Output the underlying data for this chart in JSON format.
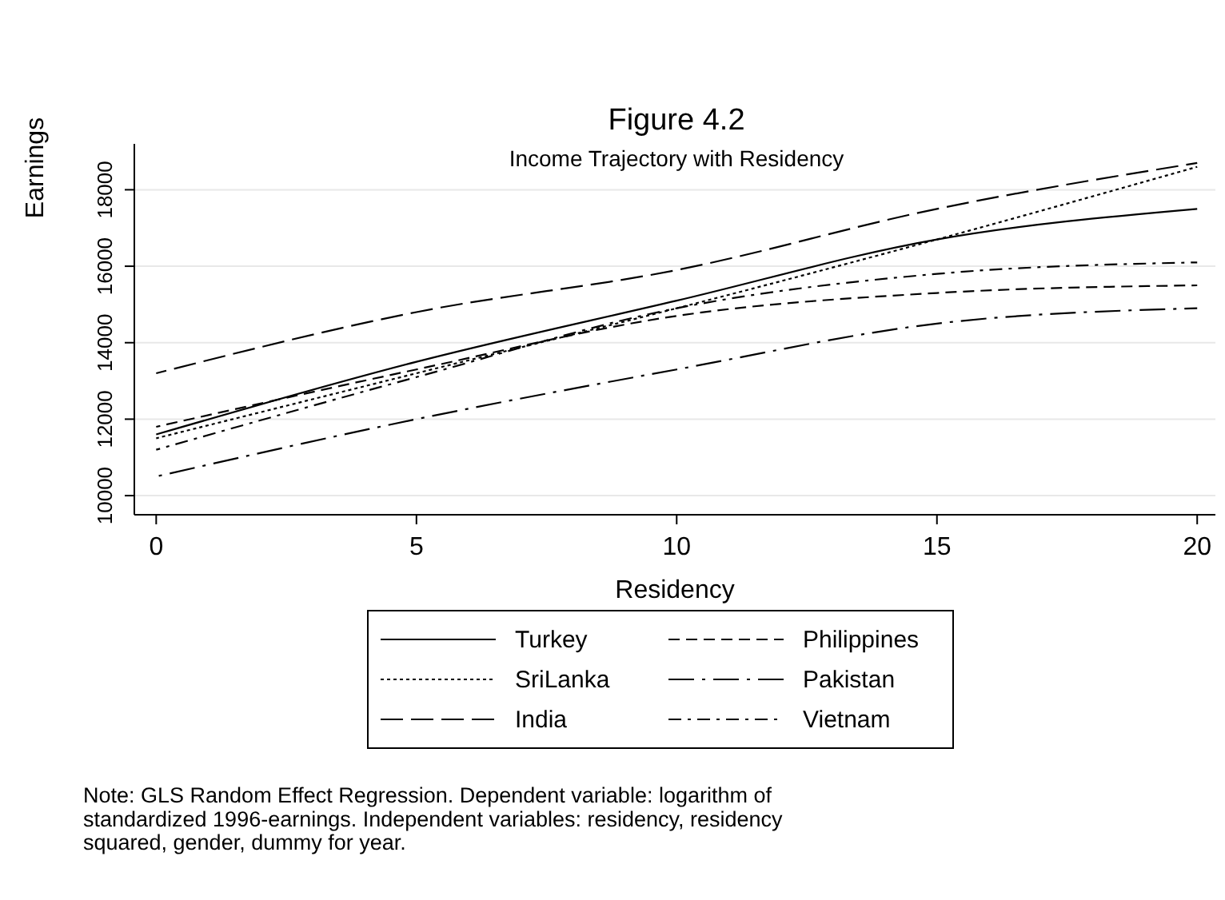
{
  "chart_data": {
    "type": "line",
    "title": "Figure 4.2",
    "subtitle": "Income Trajectory with Residency",
    "xlabel": "Residency",
    "ylabel": "Earnings",
    "x": [
      0,
      5,
      10,
      15,
      20
    ],
    "series": [
      {
        "name": "Turkey",
        "color": "#000000",
        "line_style": "solid",
        "values": [
          11600,
          13500,
          15100,
          16700,
          17500
        ]
      },
      {
        "name": "SriLanka",
        "color": "#000000",
        "line_style": "dotted",
        "values": [
          11500,
          13200,
          14900,
          16700,
          18600
        ]
      },
      {
        "name": "India",
        "color": "#000000",
        "line_style": "longdash",
        "values": [
          13200,
          14800,
          15900,
          17500,
          18700
        ]
      },
      {
        "name": "Philippines",
        "color": "#000000",
        "line_style": "dashed",
        "values": [
          11800,
          13300,
          14700,
          15300,
          15500
        ]
      },
      {
        "name": "Pakistan",
        "color": "#000000",
        "line_style": "longdashdot",
        "values": [
          10500,
          12000,
          13300,
          14500,
          14900
        ]
      },
      {
        "name": "Vietnam",
        "color": "#000000",
        "line_style": "dashdot",
        "values": [
          11200,
          13100,
          14900,
          15800,
          16100
        ]
      }
    ],
    "xlim": [
      -0.42,
      20.35
    ],
    "xticks": [
      0,
      5,
      10,
      15,
      20
    ],
    "ylim": [
      9500,
      19200
    ],
    "yticks": [
      10000,
      12000,
      14000,
      16000,
      18000
    ],
    "grid": "y",
    "legend": "bottom",
    "marker": "none",
    "annotations": [
      "Note: GLS Random Effect Regression. Dependent variable: logarithm of standardized 1996-earnings. Independent variables: residency, residency squared, gender, dummy for year."
    ]
  }
}
